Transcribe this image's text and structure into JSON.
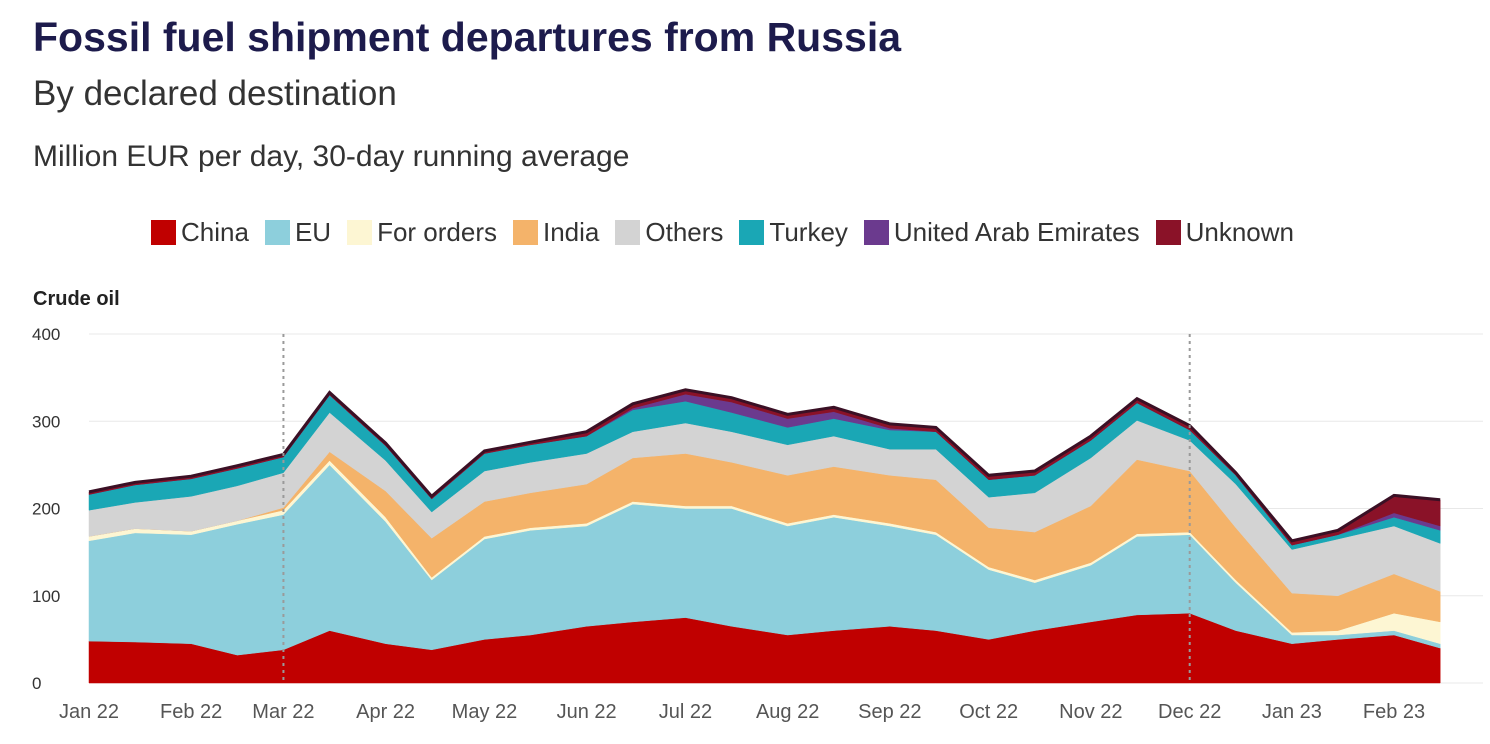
{
  "title": "Fossil fuel shipment departures from Russia",
  "subtitle": "By declared destination",
  "units": "Million EUR per day, 30-day running average",
  "legend": [
    {
      "name": "China",
      "color": "#c00000"
    },
    {
      "name": "EU",
      "color": "#8dcfdc"
    },
    {
      "name": "For orders",
      "color": "#fdf6d3"
    },
    {
      "name": "India",
      "color": "#f4b36a"
    },
    {
      "name": "Others",
      "color": "#d3d3d3"
    },
    {
      "name": "Turkey",
      "color": "#1aa7b5"
    },
    {
      "name": "United Arab Emirates",
      "color": "#6b3a8e"
    },
    {
      "name": "Unknown",
      "color": "#8a1228"
    }
  ],
  "chart_data": {
    "type": "area",
    "stacked": true,
    "panel_title": "Crude oil",
    "ylim": [
      0,
      400
    ],
    "yticks": [
      0,
      100,
      200,
      300,
      400
    ],
    "x_labels": [
      "Jan 22",
      "Feb 22",
      "Mar 22",
      "Apr 22",
      "May 22",
      "Jun 22",
      "Jul 22",
      "Aug 22",
      "Sep 22",
      "Oct 22",
      "Nov 22",
      "Dec 22",
      "Jan 23",
      "Feb 23"
    ],
    "x": [
      "2022-01-01",
      "2022-01-15",
      "2022-02-01",
      "2022-02-15",
      "2022-03-01",
      "2022-03-15",
      "2022-04-01",
      "2022-04-15",
      "2022-05-01",
      "2022-05-15",
      "2022-06-01",
      "2022-06-15",
      "2022-07-01",
      "2022-07-15",
      "2022-08-01",
      "2022-08-15",
      "2022-09-01",
      "2022-09-15",
      "2022-10-01",
      "2022-10-15",
      "2022-11-01",
      "2022-11-15",
      "2022-12-01",
      "2022-12-15",
      "2023-01-01",
      "2023-01-15",
      "2023-02-01",
      "2023-02-15"
    ],
    "vlines": [
      "2022-03-01",
      "2022-12-01"
    ],
    "series": [
      {
        "name": "China",
        "values": [
          48,
          47,
          45,
          32,
          38,
          60,
          45,
          38,
          50,
          55,
          65,
          70,
          75,
          65,
          55,
          60,
          65,
          60,
          50,
          60,
          70,
          78,
          80,
          60,
          45,
          50,
          55,
          40
        ]
      },
      {
        "name": "EU",
        "values": [
          115,
          125,
          125,
          150,
          155,
          190,
          140,
          80,
          115,
          120,
          115,
          135,
          125,
          135,
          125,
          130,
          115,
          110,
          80,
          55,
          65,
          90,
          90,
          55,
          10,
          5,
          5,
          5
        ]
      },
      {
        "name": "For orders",
        "values": [
          5,
          5,
          4,
          4,
          5,
          5,
          5,
          3,
          3,
          3,
          3,
          3,
          3,
          3,
          3,
          3,
          3,
          3,
          3,
          3,
          3,
          3,
          3,
          3,
          3,
          5,
          20,
          25
        ]
      },
      {
        "name": "India",
        "values": [
          0,
          0,
          0,
          0,
          3,
          10,
          30,
          45,
          40,
          40,
          45,
          50,
          60,
          50,
          55,
          55,
          55,
          60,
          45,
          55,
          65,
          85,
          70,
          60,
          45,
          40,
          45,
          35
        ]
      },
      {
        "name": "Others",
        "values": [
          30,
          30,
          40,
          40,
          40,
          45,
          35,
          30,
          35,
          35,
          35,
          30,
          35,
          35,
          35,
          35,
          30,
          35,
          35,
          45,
          55,
          45,
          35,
          50,
          50,
          65,
          55,
          55
        ]
      },
      {
        "name": "Turkey",
        "values": [
          18,
          20,
          20,
          20,
          18,
          20,
          17,
          15,
          20,
          20,
          20,
          25,
          25,
          22,
          20,
          20,
          22,
          20,
          20,
          20,
          20,
          20,
          12,
          10,
          5,
          5,
          10,
          15
        ]
      },
      {
        "name": "United Arab Emirates",
        "values": [
          0,
          0,
          0,
          0,
          0,
          0,
          0,
          0,
          0,
          0,
          0,
          2,
          8,
          12,
          10,
          8,
          2,
          0,
          0,
          0,
          0,
          0,
          0,
          0,
          0,
          0,
          5,
          5
        ]
      },
      {
        "name": "Unknown",
        "values": [
          3,
          3,
          3,
          3,
          3,
          3,
          3,
          3,
          3,
          3,
          5,
          5,
          5,
          5,
          5,
          5,
          5,
          5,
          5,
          5,
          5,
          5,
          5,
          3,
          5,
          5,
          20,
          30
        ]
      }
    ]
  }
}
